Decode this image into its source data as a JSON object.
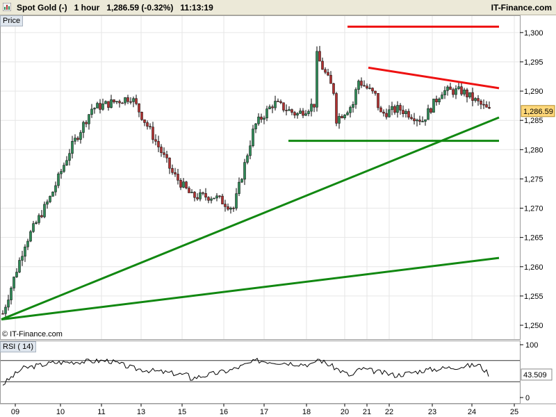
{
  "header": {
    "title": "Spot Gold (-)   1 hour   1,286.59 (-0.32%)   11:13:19",
    "site": "IT-Finance.com"
  },
  "price_panel_label": "Price",
  "rsi_panel_label": "RSI ( 14)",
  "copyright": "© IT-Finance.com",
  "last_price_label": "1,286.59",
  "rsi_value_label": "43.509",
  "colors": {
    "up_candle": "#2e8b57",
    "down_candle": "#b03030",
    "support_line": "#118811",
    "resistance_line": "#ee1111",
    "rsi_line": "#000000",
    "header_bg": "#ece9d8"
  },
  "chart_data": [
    {
      "type": "candlestick",
      "title": "Spot Gold (-)",
      "timeframe": "1 hour",
      "last": 1286.59,
      "change_pct": -0.32,
      "time": "11:13:19",
      "x_ticks": [
        "09",
        "10",
        "11",
        "13",
        "15",
        "16",
        "17",
        "18",
        "19",
        "20",
        "21",
        "22",
        "23",
        "24",
        "25"
      ],
      "y_ticks": [
        "1,250",
        "1,255",
        "1,260",
        "1,265",
        "1,270",
        "1,275",
        "1,280",
        "1,285",
        "1,290",
        "1,295",
        "1,300"
      ],
      "ylim": [
        1250,
        1302
      ],
      "path": [
        [
          "09",
          1252
        ],
        [
          "09",
          1264
        ],
        [
          "10",
          1272
        ],
        [
          "10",
          1280
        ],
        [
          "11",
          1287
        ],
        [
          "11",
          1288
        ],
        [
          "13",
          1289
        ],
        [
          "13",
          1283
        ],
        [
          "15",
          1276
        ],
        [
          "15",
          1272
        ],
        [
          "16",
          1272
        ],
        [
          "16",
          1270
        ],
        [
          "17",
          1284
        ],
        [
          "17",
          1288
        ],
        [
          "18",
          1286
        ],
        [
          "18",
          1288
        ],
        [
          "19",
          1297
        ],
        [
          "19",
          1290
        ],
        [
          "20",
          1285
        ],
        [
          "20",
          1288
        ],
        [
          "21",
          1292
        ],
        [
          "21",
          1289
        ],
        [
          "22",
          1286
        ],
        [
          "22",
          1287
        ],
        [
          "23",
          1285
        ],
        [
          "23",
          1290
        ],
        [
          "24",
          1290
        ],
        [
          "24",
          1286.59
        ]
      ],
      "trendlines": [
        {
          "color": "resistance",
          "from": [
            "19",
            1301
          ],
          "to": [
            "25",
            1301
          ]
        },
        {
          "color": "resistance",
          "from": [
            "21",
            1294
          ],
          "to": [
            "25",
            1290.5
          ]
        },
        {
          "color": "support",
          "from": [
            "17",
            1281.5
          ],
          "to": [
            "25",
            1281.5
          ]
        },
        {
          "color": "support",
          "from": [
            "09",
            1251
          ],
          "to": [
            "25",
            1285.5
          ]
        },
        {
          "color": "support",
          "from": [
            "09",
            1251
          ],
          "to": [
            "25",
            1261.5
          ]
        }
      ]
    },
    {
      "type": "line",
      "title": "RSI ( 14)",
      "y_ticks": [
        "0",
        "100"
      ],
      "ylim": [
        0,
        100
      ],
      "levels": [
        30,
        70
      ],
      "last": 43.509,
      "path": [
        [
          "09",
          25
        ],
        [
          "09",
          55
        ],
        [
          "10",
          66
        ],
        [
          "11",
          70
        ],
        [
          "13",
          55
        ],
        [
          "15",
          42
        ],
        [
          "15",
          30
        ],
        [
          "16",
          52
        ],
        [
          "17",
          70
        ],
        [
          "18",
          62
        ],
        [
          "19",
          74
        ],
        [
          "20",
          40
        ],
        [
          "21",
          55
        ],
        [
          "22",
          42
        ],
        [
          "23",
          52
        ],
        [
          "24",
          62
        ],
        [
          "24",
          43.5
        ]
      ]
    }
  ]
}
